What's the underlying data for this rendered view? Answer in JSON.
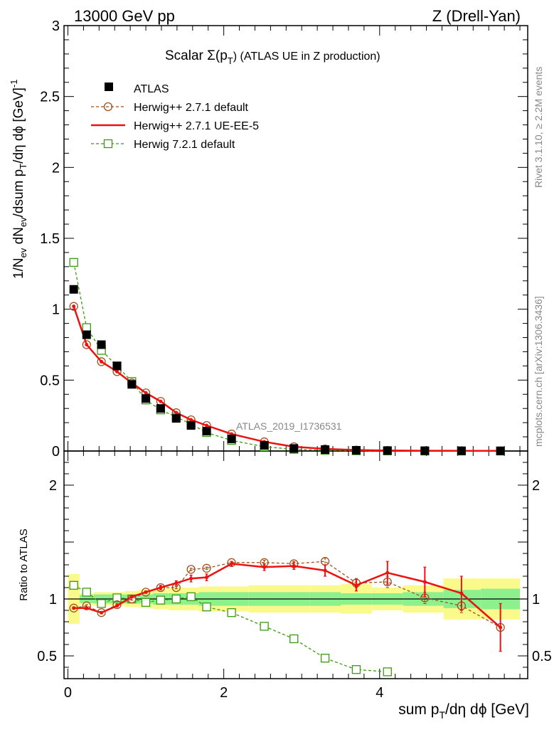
{
  "header": {
    "energy": "13000 GeV pp",
    "process": "Z (Drell-Yan)"
  },
  "side_labels": {
    "rivet": "Rivet 3.1.10, ≥ 2.2M events",
    "mcplots": "mcplots.cern.ch [arXiv:1306.3436]"
  },
  "chart_data": {
    "type": "scatter",
    "title": "Scalar Σ(p_T) (ATLAS UE in Z production)",
    "title_main": "Scalar Σ(p",
    "title_sub": "T",
    "title_tail": ") (ATLAS UE in Z production)",
    "analysis_id": "ATLAS_2019_I1736531",
    "xlabel": "sum p_T/dη dϕ [GeV]",
    "xlabel_main": "sum p",
    "xlabel_sub": "T",
    "xlabel_tail": "/dη dϕ [GeV]",
    "ylabel": "1/N_ev dN_ev/dsum p_T/dη dϕ [GeV]^-1",
    "ylabel_parts": {
      "a": "1/N",
      "a_sub": "ev",
      "b": " dN",
      "b_sub": "ev",
      "c": "/dsum p",
      "c_sub": "T",
      "d": "/dη dϕ  [GeV]",
      "d_sup": "-1"
    },
    "ratio_ylabel": "Ratio to ATLAS",
    "xlim": [
      -0.05,
      5.9
    ],
    "main_ylim": [
      0,
      3
    ],
    "ratio_ylim": [
      0.3,
      2.3
    ],
    "x_ticks": [
      0,
      2,
      4
    ],
    "main_y_ticks": [
      0,
      0.5,
      1,
      1.5,
      2,
      2.5,
      3
    ],
    "main_y_tick_labels": [
      "0",
      "0.5",
      "1",
      "1.5",
      "2",
      "2.5",
      "3"
    ],
    "ratio_y_ticks": [
      0.5,
      1,
      2
    ],
    "ratio_y_tick_labels": [
      "0.5",
      "1",
      "2"
    ],
    "x": [
      0.075,
      0.24,
      0.43,
      0.63,
      0.82,
      1.0,
      1.19,
      1.39,
      1.58,
      1.78,
      2.1,
      2.52,
      2.9,
      3.3,
      3.7,
      4.1,
      4.58,
      5.05,
      5.55
    ],
    "bin_edges": [
      0.0,
      0.15,
      0.33,
      0.53,
      0.73,
      0.91,
      1.09,
      1.29,
      1.49,
      1.68,
      1.88,
      2.32,
      2.72,
      3.1,
      3.5,
      3.9,
      4.3,
      4.82,
      5.3,
      5.8
    ],
    "legend": {
      "position": "top-left",
      "entries": [
        {
          "key": "atlas",
          "label": "ATLAS"
        },
        {
          "key": "herwig271def",
          "label": "Herwig++ 2.7.1 default"
        },
        {
          "key": "herwig271ee5",
          "label": "Herwig++ 2.7.1 UE-EE-5"
        },
        {
          "key": "herwig721",
          "label": "Herwig 7.2.1 default"
        }
      ]
    },
    "series": [
      {
        "key": "atlas",
        "name": "ATLAS",
        "color": "#000000",
        "marker": "square-filled",
        "values": [
          1.14,
          0.82,
          0.75,
          0.6,
          0.47,
          0.37,
          0.3,
          0.23,
          0.18,
          0.14,
          0.085,
          0.04,
          0.018,
          0.01,
          0.005,
          0.003,
          0.002,
          0.0015,
          0.001
        ]
      },
      {
        "key": "herwig271def",
        "name": "Herwig++ 2.7.1 default",
        "color": "#a0521e",
        "marker": "circle-open",
        "dashed": true,
        "values": [
          1.02,
          0.75,
          0.63,
          0.56,
          0.48,
          0.41,
          0.35,
          0.27,
          0.22,
          0.18,
          0.12,
          0.065,
          0.03,
          0.015,
          0.007,
          0.004,
          0.002,
          0.0015,
          0.001
        ],
        "ratio": [
          0.92,
          0.94,
          0.88,
          0.95,
          1.0,
          1.06,
          1.1,
          1.1,
          1.26,
          1.27,
          1.32,
          1.32,
          1.31,
          1.33,
          1.14,
          1.15,
          1.01,
          0.94,
          0.75
        ],
        "ratio_err": [
          0.01,
          0.01,
          0.01,
          0.01,
          0.01,
          0.01,
          0.01,
          0.01,
          0.01,
          0.01,
          0.01,
          0.02,
          0.02,
          0.03,
          0.04,
          0.05,
          0.05,
          0.06,
          0.0
        ]
      },
      {
        "key": "herwig271ee5",
        "name": "Herwig++ 2.7.1 UE-EE-5",
        "color": "#ee1111",
        "marker": "dot",
        "dashed": false,
        "values": [
          1.02,
          0.75,
          0.63,
          0.56,
          0.48,
          0.41,
          0.35,
          0.27,
          0.22,
          0.18,
          0.12,
          0.065,
          0.03,
          0.015,
          0.007,
          0.004,
          0.002,
          0.0015,
          0.001
        ],
        "ratio": [
          0.92,
          0.92,
          0.88,
          0.94,
          1.02,
          1.06,
          1.1,
          1.14,
          1.18,
          1.19,
          1.31,
          1.28,
          1.29,
          1.25,
          1.12,
          1.23,
          1.15,
          1.05,
          0.75
        ],
        "ratio_err": [
          0.01,
          0.01,
          0.01,
          0.01,
          0.01,
          0.01,
          0.02,
          0.02,
          0.03,
          0.03,
          0.02,
          0.03,
          0.03,
          0.05,
          0.05,
          0.1,
          0.13,
          0.15,
          0.21
        ]
      },
      {
        "key": "herwig721",
        "name": "Herwig 7.2.1 default",
        "color": "#3a9a10",
        "marker": "square-open",
        "dashed": true,
        "values": [
          1.33,
          0.87,
          0.71,
          0.6,
          0.49,
          0.36,
          0.29,
          0.24,
          0.19,
          0.13,
          0.075,
          0.03,
          0.012,
          0.005,
          0.002,
          0.001,
          0.0,
          0.0,
          0.0
        ],
        "ratio": [
          1.12,
          1.06,
          0.96,
          1.01,
          1.0,
          0.97,
          0.99,
          1.0,
          1.02,
          0.93,
          0.88,
          0.76,
          0.65,
          0.48,
          0.38,
          0.36
        ],
        "ratio_err": [
          0.01,
          0.01,
          0.01,
          0.01,
          0.01,
          0.01,
          0.01,
          0.01,
          0.01,
          0.01,
          0.01,
          0.01,
          0.02,
          0.03,
          0.03,
          0.03
        ]
      }
    ],
    "atlas_band": {
      "stat_color": "#8cf08c",
      "syst_color": "#fafa8c",
      "inner_half_width": [
        0.0,
        0.035,
        0.04,
        0.04,
        0.04,
        0.04,
        0.05,
        0.05,
        0.05,
        0.06,
        0.06,
        0.06,
        0.06,
        0.06,
        0.05,
        0.05,
        0.06,
        0.08,
        0.09
      ],
      "outer_half_width": [
        0.22,
        0.05,
        0.06,
        0.06,
        0.07,
        0.08,
        0.09,
        0.1,
        0.1,
        0.11,
        0.11,
        0.12,
        0.12,
        0.12,
        0.13,
        0.1,
        0.12,
        0.18,
        0.18
      ]
    }
  }
}
